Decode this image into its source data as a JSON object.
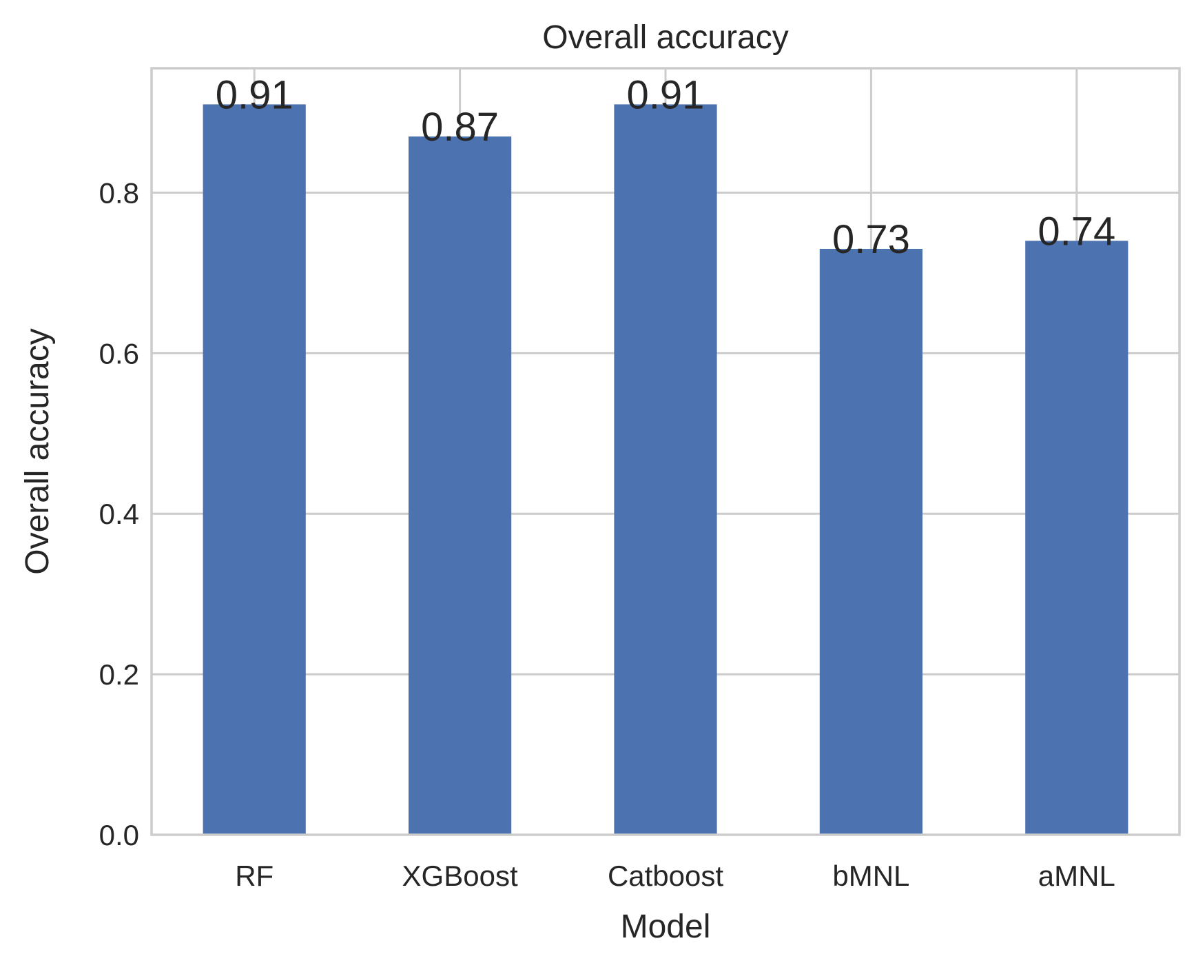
{
  "chart_data": {
    "type": "bar",
    "title": "Overall accuracy",
    "xlabel": "Model",
    "ylabel": "Overall accuracy",
    "categories": [
      "RF",
      "XGBoost",
      "Catboost",
      "bMNL",
      "aMNL"
    ],
    "values": [
      0.91,
      0.87,
      0.91,
      0.73,
      0.74
    ],
    "value_labels": [
      "0.91",
      "0.87",
      "0.91",
      "0.73",
      "0.74"
    ],
    "yticks": [
      "0.0",
      "0.2",
      "0.4",
      "0.6",
      "0.8"
    ],
    "ylim": [
      0,
      0.955
    ],
    "grid": true,
    "bar_color": "#4c72b0",
    "grid_color": "#cccccc"
  }
}
